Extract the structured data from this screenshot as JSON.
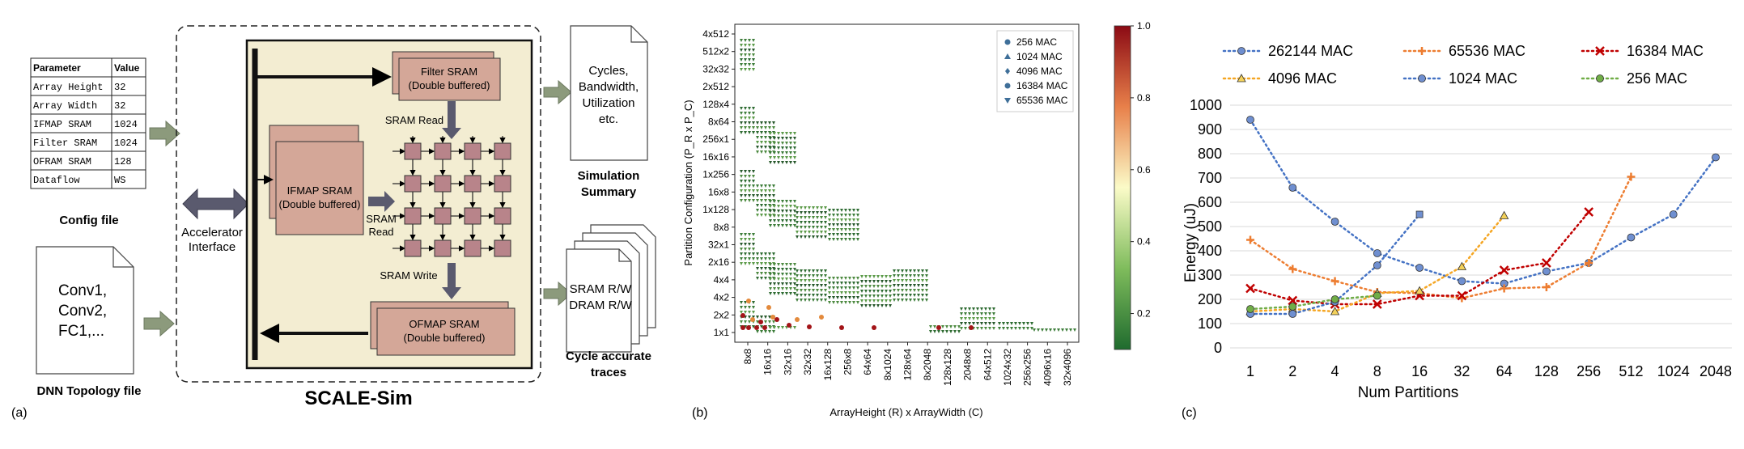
{
  "panel_a": {
    "label": "(a)",
    "config_table": {
      "headers": [
        "Parameter",
        "Value"
      ],
      "rows": [
        [
          "Array Height",
          "32"
        ],
        [
          "Array Width",
          "32"
        ],
        [
          "IFMAP SRAM",
          "1024"
        ],
        [
          "Filter SRAM",
          "1024"
        ],
        [
          "OFRAM SRAM",
          "128"
        ],
        [
          "Dataflow",
          "WS"
        ]
      ]
    },
    "config_caption": "Config file",
    "topology_doc_lines": [
      "Conv1,",
      "Conv2,",
      "FC1,..."
    ],
    "topology_caption": "DNN Topology file",
    "accelerator_interface": [
      "Accelerator",
      "Interface"
    ],
    "filter_sram": [
      "Filter SRAM",
      "(Double buffered)"
    ],
    "ifmap_sram": [
      "IFMAP SRAM",
      "(Double buffered)"
    ],
    "ofmap_sram": [
      "OFMAP SRAM",
      "(Double buffered)"
    ],
    "sram_read_top": "SRAM Read",
    "sram_read_left": [
      "SRAM",
      "Read"
    ],
    "sram_write": "SRAM Write",
    "summary_doc_lines": [
      "Cycles,",
      "Bandwidth,",
      "Utilization",
      "etc."
    ],
    "summary_caption": [
      "Simulation",
      "Summary"
    ],
    "traces_doc_lines": [
      "SRAM R/W",
      "DRAM R/W"
    ],
    "traces_caption": [
      "Cycle accurate",
      "traces"
    ],
    "title": "SCALE-Sim",
    "colors": {
      "sram_fill": "#d4a798",
      "pe_fill": "#b8848a",
      "frame_fill": "#f3edd2",
      "arrow": "#6b6b6b"
    }
  },
  "panel_b": {
    "label": "(b)",
    "chart_data": {
      "type": "scatter",
      "xlabel": "ArrayHeight (R) x ArrayWidth (C)",
      "ylabel": "Partition Configuration (P_R x P_C)",
      "categories_x": [
        "8x8",
        "16x16",
        "32x16",
        "32x32",
        "16x128",
        "256x8",
        "64x64",
        "8x1024",
        "128x64",
        "8x2048",
        "128x128",
        "2048x8",
        "64x512",
        "1024x32",
        "256x256",
        "4096x16",
        "32x4096"
      ],
      "categories_y": [
        "1x1",
        "2x2",
        "4x2",
        "4x4",
        "2x16",
        "32x1",
        "8x8",
        "1x128",
        "16x8",
        "1x256",
        "16x16",
        "256x1",
        "8x64",
        "128x4",
        "2x512",
        "32x32",
        "512x2",
        "4x512"
      ],
      "legend": [
        "256 MAC",
        "1024 MAC",
        "4096 MAC",
        "16384 MAC",
        "65536 MAC"
      ],
      "colorbar_ticks": [
        "1.0",
        "0.8",
        "0.6",
        "0.4",
        "0.2"
      ],
      "colorbar_range": [
        0.1,
        1.0
      ],
      "legend_position": "top-right"
    }
  },
  "panel_c": {
    "label": "(c)",
    "chart_data": {
      "type": "line",
      "title": "",
      "xlabel": "Num Partitions",
      "ylabel": "Energy (uJ)",
      "categories": [
        "1",
        "2",
        "4",
        "8",
        "16",
        "32",
        "64",
        "128",
        "256",
        "512",
        "1024",
        "2048"
      ],
      "ylim": [
        0,
        1000
      ],
      "yticks": [
        "0",
        "100",
        "200",
        "300",
        "400",
        "500",
        "600",
        "700",
        "800",
        "900",
        "1000"
      ],
      "grid": true,
      "legend_position": "top",
      "series": [
        {
          "name": "262144 MAC",
          "color": "#4472c4",
          "marker": "circle",
          "values": [
            940,
            660,
            520,
            390,
            330,
            275,
            265,
            315,
            350,
            455,
            550,
            785
          ]
        },
        {
          "name": "65536 MAC",
          "color": "#ed7d31",
          "marker": "plus",
          "values": [
            445,
            325,
            275,
            230,
            225,
            205,
            245,
            250,
            350,
            705,
            null,
            null
          ]
        },
        {
          "name": "16384 MAC",
          "color": "#c00000",
          "marker": "x",
          "values": [
            245,
            195,
            180,
            180,
            215,
            215,
            320,
            350,
            560,
            null,
            null,
            null
          ]
        },
        {
          "name": "4096 MAC",
          "color": "#f5a623",
          "marker": "triangle",
          "values": [
            150,
            160,
            150,
            225,
            235,
            335,
            545,
            null,
            null,
            null,
            null,
            null
          ]
        },
        {
          "name": "1024 MAC",
          "color": "#4472c4",
          "marker": "circle-small",
          "values": [
            140,
            140,
            190,
            340,
            550,
            null,
            null,
            null,
            null,
            null,
            null,
            null
          ]
        },
        {
          "name": "256 MAC",
          "color": "#70ad47",
          "marker": "circle",
          "values": [
            160,
            170,
            200,
            215,
            null,
            null,
            null,
            null,
            null,
            null,
            null,
            null
          ]
        }
      ]
    }
  }
}
